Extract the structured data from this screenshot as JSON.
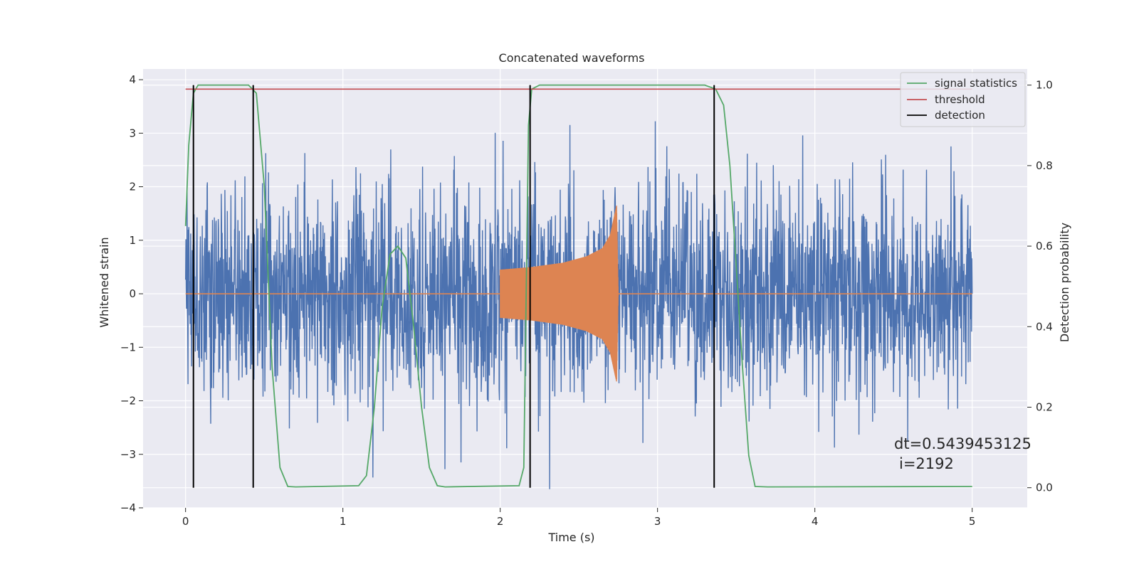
{
  "chart_data": {
    "type": "line",
    "title": "Concatenated waveforms",
    "xlabel": "Time (s)",
    "ylabel": "Whitened strain",
    "ylabel2": "Detection probability",
    "xlim": [
      -0.27,
      5.35
    ],
    "ylim": [
      -4.0,
      4.2
    ],
    "ylim2": [
      -0.05,
      1.04
    ],
    "xticks": [
      0,
      1,
      2,
      3,
      4,
      5
    ],
    "yticks": [
      -4,
      -3,
      -2,
      -1,
      0,
      1,
      2,
      3,
      4
    ],
    "yticks_labels": [
      "−4",
      "−3",
      "−2",
      "−1",
      "0",
      "1",
      "2",
      "3",
      "4"
    ],
    "yticks2": [
      0.0,
      0.2,
      0.4,
      0.6,
      0.8,
      1.0
    ],
    "yticks2_labels": [
      "0.0",
      "0.2",
      "0.4",
      "0.6",
      "0.8",
      "1.0"
    ],
    "grid": true,
    "legend_position": "top-right",
    "colors": {
      "background": "#eaeaf2",
      "strain": "#4c72b0",
      "injection": "#dd8452",
      "signal_statistics": "#55a868",
      "threshold": "#c44e52",
      "detection": "#000000"
    },
    "series": [
      {
        "name": "strain",
        "axis": "left",
        "x_range": [
          0,
          5
        ],
        "peak_max": 3.85,
        "peak_min": -3.65,
        "note_hidden": false
      },
      {
        "name": "injection",
        "axis": "left",
        "x_range": [
          2.0,
          2.75
        ],
        "envelope": [
          [
            2.0,
            0.45
          ],
          [
            2.2,
            0.5
          ],
          [
            2.4,
            0.58
          ],
          [
            2.55,
            0.7
          ],
          [
            2.65,
            0.85
          ],
          [
            2.7,
            1.1
          ],
          [
            2.74,
            1.65
          ],
          [
            2.75,
            0.05
          ]
        ]
      },
      {
        "name": "signal statistics",
        "axis": "right",
        "points": [
          [
            0.0,
            0.65
          ],
          [
            0.02,
            0.85
          ],
          [
            0.05,
            0.98
          ],
          [
            0.08,
            1.0
          ],
          [
            0.4,
            1.0
          ],
          [
            0.45,
            0.98
          ],
          [
            0.5,
            0.75
          ],
          [
            0.55,
            0.3
          ],
          [
            0.6,
            0.05
          ],
          [
            0.65,
            0.003
          ],
          [
            0.7,
            0.002
          ],
          [
            1.1,
            0.005
          ],
          [
            1.15,
            0.03
          ],
          [
            1.2,
            0.2
          ],
          [
            1.25,
            0.45
          ],
          [
            1.3,
            0.58
          ],
          [
            1.35,
            0.6
          ],
          [
            1.4,
            0.57
          ],
          [
            1.45,
            0.4
          ],
          [
            1.5,
            0.2
          ],
          [
            1.55,
            0.05
          ],
          [
            1.6,
            0.005
          ],
          [
            1.65,
            0.002
          ],
          [
            2.12,
            0.005
          ],
          [
            2.15,
            0.05
          ],
          [
            2.18,
            0.9
          ],
          [
            2.2,
            0.99
          ],
          [
            2.25,
            1.0
          ],
          [
            3.3,
            1.0
          ],
          [
            3.37,
            0.99
          ],
          [
            3.42,
            0.95
          ],
          [
            3.46,
            0.8
          ],
          [
            3.5,
            0.55
          ],
          [
            3.54,
            0.3
          ],
          [
            3.58,
            0.08
          ],
          [
            3.62,
            0.003
          ],
          [
            3.7,
            0.002
          ],
          [
            5.0,
            0.003
          ]
        ]
      },
      {
        "name": "threshold",
        "axis": "right",
        "value": 0.99,
        "x_range": [
          0,
          5
        ]
      },
      {
        "name": "detection",
        "axis": "right",
        "x_values": [
          0.05,
          0.43,
          2.19,
          3.36
        ],
        "range": [
          0,
          1
        ]
      }
    ],
    "legend": [
      "signal statistics",
      "threshold",
      "detection"
    ],
    "annotation": {
      "line1": "dt=0.5439453125",
      "line2": "i=2192"
    }
  }
}
